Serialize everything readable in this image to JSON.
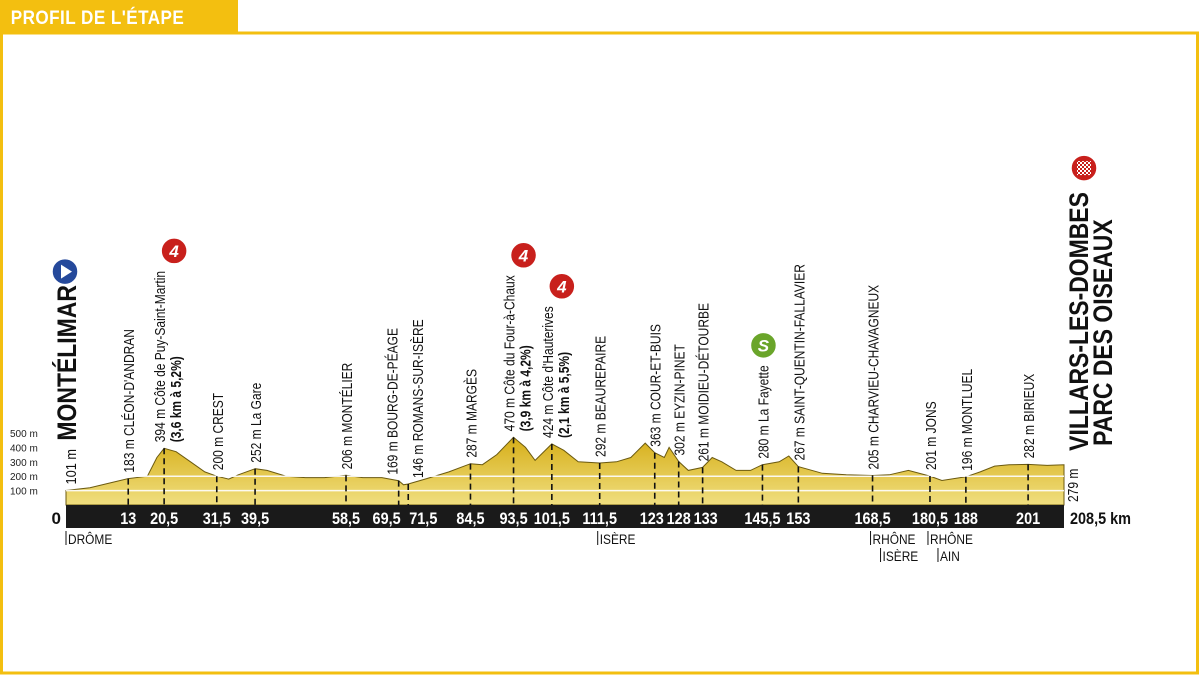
{
  "header": {
    "title": "PROFIL DE L'ÉTAPE"
  },
  "colors": {
    "frame": "#f3bf10",
    "profile_fill_top": "#d8b21c",
    "profile_fill_bottom": "#efdc7a",
    "bar": "#1a1a1a",
    "climb": "#c8201c",
    "sprint": "#6aa52a",
    "start": "#25499b",
    "finish": "#c8201c"
  },
  "chart_data": {
    "type": "area",
    "title": "",
    "xlabel": "",
    "ylabel": "",
    "xlim": [
      0,
      208.5
    ],
    "ylim": [
      0,
      500
    ],
    "x_unit": "km",
    "y_ticks": [
      "100 m",
      "200 m",
      "300 m",
      "400 m",
      "500 m"
    ],
    "y_tick_values": [
      100,
      200,
      300,
      400,
      500
    ],
    "gridlines_at": [
      100,
      200
    ],
    "profile": [
      [
        0,
        101
      ],
      [
        5,
        120
      ],
      [
        10,
        160
      ],
      [
        13,
        183
      ],
      [
        17,
        200
      ],
      [
        19,
        330
      ],
      [
        20.5,
        394
      ],
      [
        23,
        370
      ],
      [
        26,
        300
      ],
      [
        29,
        230
      ],
      [
        31.5,
        200
      ],
      [
        34,
        180
      ],
      [
        36,
        210
      ],
      [
        39.5,
        252
      ],
      [
        42,
        240
      ],
      [
        46,
        200
      ],
      [
        50,
        190
      ],
      [
        54,
        190
      ],
      [
        58.5,
        206
      ],
      [
        62,
        190
      ],
      [
        66,
        190
      ],
      [
        69.5,
        169
      ],
      [
        70.5,
        140
      ],
      [
        71.5,
        146
      ],
      [
        75,
        180
      ],
      [
        80,
        230
      ],
      [
        84.5,
        287
      ],
      [
        87,
        280
      ],
      [
        90,
        350
      ],
      [
        93.5,
        470
      ],
      [
        96,
        400
      ],
      [
        98,
        310
      ],
      [
        101.5,
        424
      ],
      [
        104,
        380
      ],
      [
        107,
        300
      ],
      [
        111.5,
        292
      ],
      [
        115,
        300
      ],
      [
        118,
        330
      ],
      [
        121,
        430
      ],
      [
        123,
        363
      ],
      [
        125,
        330
      ],
      [
        126,
        400
      ],
      [
        128,
        302
      ],
      [
        130,
        240
      ],
      [
        133,
        261
      ],
      [
        135,
        330
      ],
      [
        137,
        300
      ],
      [
        140,
        240
      ],
      [
        143,
        240
      ],
      [
        145.5,
        280
      ],
      [
        149,
        300
      ],
      [
        151,
        340
      ],
      [
        153,
        267
      ],
      [
        158,
        220
      ],
      [
        163,
        210
      ],
      [
        168.5,
        205
      ],
      [
        172,
        210
      ],
      [
        176,
        240
      ],
      [
        180.5,
        201
      ],
      [
        183,
        170
      ],
      [
        188,
        196
      ],
      [
        191,
        230
      ],
      [
        194,
        270
      ],
      [
        197,
        280
      ],
      [
        201,
        282
      ],
      [
        205,
        275
      ],
      [
        208.5,
        279
      ]
    ],
    "start": {
      "km": 0,
      "alt": "101 m",
      "name": "MONTÉLIMAR",
      "marker": "start"
    },
    "finish": {
      "km": 208.5,
      "alt": "279 m",
      "name_line1": "VILLARS-LES-DOMBES",
      "name_line2": "PARC DES OISEAUX",
      "marker": "finish",
      "distance_label": "208,5 km"
    },
    "waypoints": [
      {
        "km": 13,
        "km_label": "13",
        "alt": 183,
        "text": "183 m  CLÉON-D'ANDRAN"
      },
      {
        "km": 20.5,
        "km_label": "20,5",
        "alt": 394,
        "text": "394 m  Côte de Puy-Saint-Martin",
        "detail": "(3,6 km à 5,2%)",
        "marker": "4"
      },
      {
        "km": 31.5,
        "km_label": "31,5",
        "alt": 200,
        "text": "200 m  CREST"
      },
      {
        "km": 39.5,
        "km_label": "39,5",
        "alt": 252,
        "text": "252 m  La Gare"
      },
      {
        "km": 58.5,
        "km_label": "58,5",
        "alt": 206,
        "text": "206 m  MONTÉLIER"
      },
      {
        "km": 69.5,
        "km_label": "69,5",
        "alt": 169,
        "text": "169 m  BOURG-DE-PÉAGE"
      },
      {
        "km": 71.5,
        "km_label": "71,5",
        "alt": 146,
        "text": "146 m  ROMANS-SUR-ISÈRE"
      },
      {
        "km": 84.5,
        "km_label": "84,5",
        "alt": 287,
        "text": "287 m  MARGÈS"
      },
      {
        "km": 93.5,
        "km_label": "93,5",
        "alt": 470,
        "text": "470 m  Côte du Four-à-Chaux",
        "detail": "(3,9 km à 4,2%)",
        "marker": "4"
      },
      {
        "km": 101.5,
        "km_label": "101,5",
        "alt": 424,
        "text": "424 m  Côte d'Hauterives",
        "detail": "(2,1 km à 5,5%)",
        "marker": "4"
      },
      {
        "km": 111.5,
        "km_label": "111,5",
        "alt": 292,
        "text": "292 m  BEAUREPAIRE"
      },
      {
        "km": 123,
        "km_label": "123",
        "alt": 363,
        "text": "363 m  COUR-ET-BUIS"
      },
      {
        "km": 128,
        "km_label": "128",
        "alt": 302,
        "text": "302 m  EYZIN-PINET"
      },
      {
        "km": 133,
        "km_label": "133",
        "alt": 261,
        "text": "261 m  MOIDIEU-DÉTOURBE"
      },
      {
        "km": 145.5,
        "km_label": "145,5",
        "alt": 280,
        "text": "280 m  La Fayette",
        "marker": "S"
      },
      {
        "km": 153,
        "km_label": "153",
        "alt": 267,
        "text": "267 m  SAINT-QUENTIN-FALLAVIER"
      },
      {
        "km": 168.5,
        "km_label": "168,5",
        "alt": 205,
        "text": "205 m  CHARVIEU-CHAVAGNEUX"
      },
      {
        "km": 180.5,
        "km_label": "180,5",
        "alt": 201,
        "text": "201 m  JONS"
      },
      {
        "km": 188,
        "km_label": "188",
        "alt": 196,
        "text": "196 m  MONTLUEL"
      },
      {
        "km": 201,
        "km_label": "201",
        "alt": 282,
        "text": "282 m  BIRIEUX"
      }
    ],
    "zero_label": "0",
    "departments": [
      {
        "km": 0,
        "lines": [
          "DRÔME"
        ]
      },
      {
        "km": 111.5,
        "lines": [
          "ISÈRE"
        ]
      },
      {
        "km": 168.5,
        "lines": [
          "RHÔNE",
          "ISÈRE"
        ]
      },
      {
        "km": 180.5,
        "lines": [
          "RHÔNE",
          "AIN"
        ]
      }
    ]
  }
}
